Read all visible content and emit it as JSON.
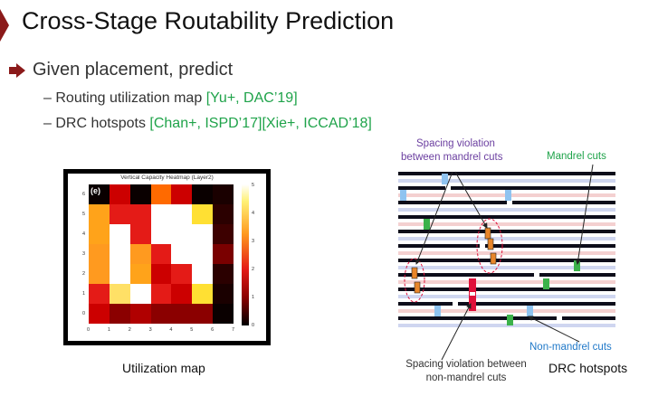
{
  "slide": {
    "title": "Cross-Stage Routability Prediction",
    "bullet": "Given placement, predict",
    "items": [
      {
        "dash": "–",
        "text": "Routing utilization map",
        "ref": "[Yu+, DAC’19]"
      },
      {
        "dash": "–",
        "text": "DRC hotspots",
        "ref": "[Chan+, ISPD’17][Xie+, ICCAD’18]"
      }
    ]
  },
  "heatmap": {
    "title": "Vertical Capacity Heatmap (Layer2)",
    "panel_label": "(e)",
    "caption": "Utilization map",
    "x_ticks": [
      "0",
      "1",
      "2",
      "3",
      "4",
      "5",
      "6",
      "7"
    ],
    "y_ticks": [
      "0",
      "1",
      "2",
      "3",
      "4",
      "5",
      "6"
    ],
    "colorbar_ticks": [
      "5",
      "4",
      "3",
      "2",
      "1",
      "0"
    ],
    "cells": [
      [
        "#0a0000",
        "#cc0000",
        "#0a0000",
        "#ff6a00",
        "#cc0000",
        "#0a0000",
        "#1a0000"
      ],
      [
        "#ffa31a",
        "#e41b17",
        "#e41b17",
        "#ffffff",
        "#ffffff",
        "#ffe033",
        "#2b0000"
      ],
      [
        "#ffa31a",
        "#ffffff",
        "#e41b17",
        "#ffffff",
        "#ffffff",
        "#ffffff",
        "#3d0000"
      ],
      [
        "#ff9a1f",
        "#ffffff",
        "#ff9a1f",
        "#e41b17",
        "#ffffff",
        "#ffffff",
        "#7a0000"
      ],
      [
        "#ff9a1f",
        "#ffffff",
        "#ffa31a",
        "#cc0000",
        "#e41b17",
        "#ffffff",
        "#2b0000"
      ],
      [
        "#e41b17",
        "#ffe066",
        "#ffffff",
        "#e41b17",
        "#cc0000",
        "#ffe033",
        "#1a0000"
      ],
      [
        "#cc0000",
        "#8b0000",
        "#b00000",
        "#8b0000",
        "#8b0000",
        "#8b0000",
        "#0a0000"
      ]
    ]
  },
  "drc": {
    "caption": "DRC hotspots",
    "annotations": {
      "spacing_mandrel": [
        "Spacing violation",
        "between mandrel cuts"
      ],
      "mandrel_cuts": "Mandrel cuts",
      "non_mandrel_cuts": "Non-mandrel cuts",
      "spacing_non_mandrel": [
        "Spacing violation between",
        "non-mandrel cuts"
      ]
    },
    "colors": {
      "purple": "#6b3fa0",
      "green": "#1fa34a",
      "blue": "#1f78c8",
      "orange": "#e8862a",
      "red_violation": "#e0103a"
    }
  }
}
